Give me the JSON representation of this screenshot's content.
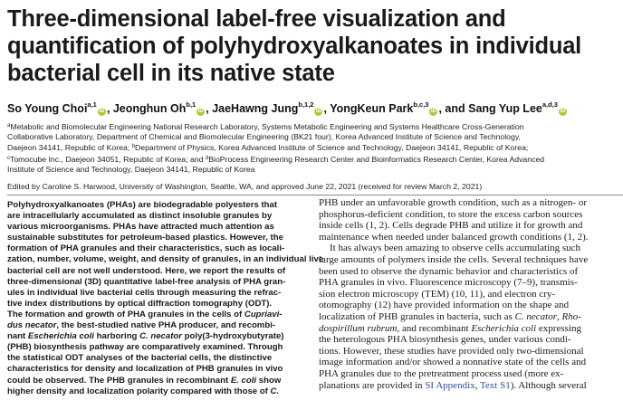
{
  "title_lines": [
    "Three-dimensional label-free visualization and",
    "quantification of polyhydroxyalkanoates in individual",
    "bacterial cell in its native state"
  ],
  "authors": [
    {
      "name": "So Young Choi",
      "sup": "a,1"
    },
    {
      "name": "Jeonghun Oh",
      "sup": "b,1"
    },
    {
      "name": "JaeHawng Jung",
      "sup": "b,1,2"
    },
    {
      "name": "YongKeun Park",
      "sup": "b,c,3"
    },
    {
      "name": "Sang Yup Lee",
      "sup": "a,d,3"
    }
  ],
  "author_sep": ",",
  "author_and": ", and",
  "affiliations": [
    [
      {
        "sup": "a"
      },
      {
        "t": "Metabolic and Biomolecular Engineering National Research Laboratory, Systems Metabolic Engineering and Systems Healthcare Cross-Generation"
      }
    ],
    [
      {
        "t": "Collaborative Laboratory, Department of Chemical and Biomolecular Engineering (BK21 four), Korea Advanced Institute of Science and Technology,"
      }
    ],
    [
      {
        "t": "Daejeon 34141, Republic of Korea; "
      },
      {
        "sup": "b"
      },
      {
        "t": "Department of Physics, Korea Advanced Institute of Science and Technology, Daejeon 34141, Republic of Korea;"
      }
    ],
    [
      {
        "sup": "c"
      },
      {
        "t": "Tomocube Inc., Daejeon 34051, Republic of Korea; and "
      },
      {
        "sup": "d"
      },
      {
        "t": "BioProcess Engineering Research Center and Bioinformatics Research Center, Korea Advanced"
      }
    ],
    [
      {
        "t": "Institute of Science and Technology, Daejeon 34141, Republic of Korea"
      }
    ]
  ],
  "edited": "Edited by Caroline S. Harwood, University of Washington, Seattle, WA, and approved June 22, 2021 (received for review March 2, 2021)",
  "abstract_lines": [
    [
      {
        "t": "Polyhydroxyalkanoates (PHAs) are biodegradable polyesters that"
      }
    ],
    [
      {
        "t": "are intracellularly accumulated as distinct insoluble granules by"
      }
    ],
    [
      {
        "t": "various microorganisms. PHAs have attracted much attention as"
      }
    ],
    [
      {
        "t": "sustainable substitutes for petroleum-based plastics. However, the"
      }
    ],
    [
      {
        "t": "formation of PHA granules and their characteristics, such as locali-"
      }
    ],
    [
      {
        "t": "zation, number, volume, weight, and density of granules, in an individual live"
      }
    ],
    [
      {
        "t": "bacterial cell are not well understood. Here, we report the results of"
      }
    ],
    [
      {
        "t": "three-dimensional (3D) quantitative label-free analysis of PHA gran-"
      }
    ],
    [
      {
        "t": "ules in individual live bacterial cells through measuring the refrac-"
      }
    ],
    [
      {
        "t": "tive index distributions by optical diffraction tomography (ODT)."
      }
    ],
    [
      {
        "t": "The formation and growth of PHA granules in the cells of "
      },
      {
        "i": "Cupriavi-"
      }
    ],
    [
      {
        "i": "dus necator"
      },
      {
        "t": ", the best-studied native PHA producer, and recombi-"
      }
    ],
    [
      {
        "t": "nant "
      },
      {
        "i": "Escherichia coli"
      },
      {
        "t": " harboring "
      },
      {
        "i": "C. necator"
      },
      {
        "t": " poly(3-hydroxybutyrate)"
      }
    ],
    [
      {
        "t": "(PHB) biosynthesis pathway are comparatively examined. Through"
      }
    ],
    [
      {
        "t": "the statistical ODT analyses of the bacterial cells, the distinctive"
      }
    ],
    [
      {
        "t": "characteristics for density and localization of PHB granules in vivo"
      }
    ],
    [
      {
        "t": "could be observed. The PHB granules in recombinant "
      },
      {
        "i": "E. coli"
      },
      {
        "t": " show"
      }
    ],
    [
      {
        "t": "higher density and localization polarity compared with those of "
      },
      {
        "i": "C."
      }
    ]
  ],
  "body_lines": [
    {
      "indent": false,
      "parts": [
        {
          "t": "PHB under an unfavorable growth condition, such as a nitrogen- or"
        }
      ]
    },
    {
      "indent": false,
      "parts": [
        {
          "t": "phosphorus-deficient condition, to store the excess carbon sources"
        }
      ]
    },
    {
      "indent": false,
      "parts": [
        {
          "t": "inside cells (1, 2). Cells degrade PHB and utilize it for growth and"
        }
      ]
    },
    {
      "indent": false,
      "parts": [
        {
          "t": "maintenance when needed under balanced growth conditions (1, 2)."
        }
      ]
    },
    {
      "indent": true,
      "parts": [
        {
          "t": "It has always been amazing to observe cells accumulating such"
        }
      ]
    },
    {
      "indent": false,
      "parts": [
        {
          "t": "large amounts of polymers inside the cells. Several techniques have"
        }
      ]
    },
    {
      "indent": false,
      "parts": [
        {
          "t": "been used to observe the dynamic behavior and characteristics of"
        }
      ]
    },
    {
      "indent": false,
      "parts": [
        {
          "t": "PHA granules in vivo. Fluorescence microscopy (7–9), transmis-"
        }
      ]
    },
    {
      "indent": false,
      "parts": [
        {
          "t": "sion electron microscopy (TEM) (10, 11), and electron cry-"
        }
      ]
    },
    {
      "indent": false,
      "parts": [
        {
          "t": "otomography (12) have provided information on the shape and"
        }
      ]
    },
    {
      "indent": false,
      "parts": [
        {
          "t": "localization of PHB granules in bacteria, such as "
        },
        {
          "i": "C. necator"
        },
        {
          "t": ", "
        },
        {
          "i": "Rho-"
        }
      ]
    },
    {
      "indent": false,
      "parts": [
        {
          "i": "dospirillum rubrum"
        },
        {
          "t": ", and recombinant "
        },
        {
          "i": "Escherichia coli"
        },
        {
          "t": " expressing"
        }
      ]
    },
    {
      "indent": false,
      "parts": [
        {
          "t": "the heterologous PHA biosynthesis genes, under various condi-"
        }
      ]
    },
    {
      "indent": false,
      "parts": [
        {
          "t": "tions. However, these studies have provided only two-dimensional"
        }
      ]
    },
    {
      "indent": false,
      "parts": [
        {
          "t": "image information and/or showed a nonnative state of the cells and"
        }
      ]
    },
    {
      "indent": false,
      "parts": [
        {
          "t": "PHA granules due to the pretreatment process used (more ex-"
        }
      ]
    },
    {
      "indent": false,
      "parts": [
        {
          "t": "planations are provided in "
        },
        {
          "link": "SI Appendix"
        },
        {
          "t": ", "
        },
        {
          "link": "Text S1"
        },
        {
          "t": "). Although several"
        }
      ]
    }
  ],
  "colors": {
    "orcid": "#a6ce39",
    "link": "#2a4fa8"
  },
  "icons": {
    "orcid": "orcid-icon"
  },
  "orcid_glyph": "iD"
}
